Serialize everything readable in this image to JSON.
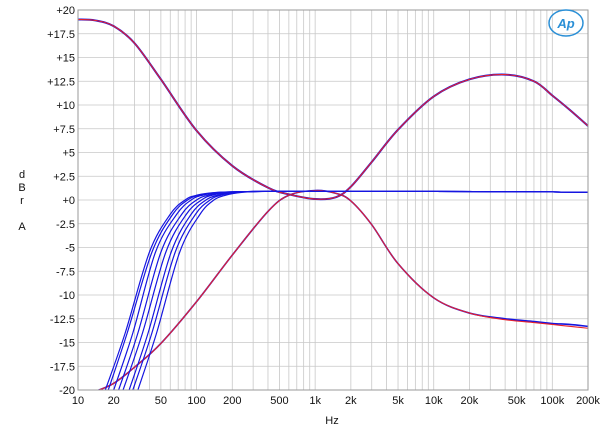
{
  "logo": {
    "text": "Ap",
    "color": "#2a8fd6"
  },
  "chart_data": {
    "type": "line",
    "title": "",
    "xlabel": "Hz",
    "ylabel_lines": [
      "d",
      "B",
      "r",
      "",
      "A"
    ],
    "x_scale": "log",
    "xlim": [
      10,
      200000
    ],
    "ylim": [
      -20,
      20
    ],
    "grid": true,
    "x_tick_labels": [
      {
        "v": 10,
        "label": "10"
      },
      {
        "v": 20,
        "label": "20"
      },
      {
        "v": 50,
        "label": "50"
      },
      {
        "v": 100,
        "label": "100"
      },
      {
        "v": 200,
        "label": "200"
      },
      {
        "v": 500,
        "label": "500"
      },
      {
        "v": 1000,
        "label": "1k"
      },
      {
        "v": 2000,
        "label": "2k"
      },
      {
        "v": 5000,
        "label": "5k"
      },
      {
        "v": 10000,
        "label": "10k"
      },
      {
        "v": 20000,
        "label": "20k"
      },
      {
        "v": 50000,
        "label": "50k"
      },
      {
        "v": 100000,
        "label": "100k"
      },
      {
        "v": 200000,
        "label": "200k"
      }
    ],
    "y_tick_labels": [
      {
        "v": 20,
        "label": "+20"
      },
      {
        "v": 17.5,
        "label": "+17.5"
      },
      {
        "v": 15,
        "label": "+15"
      },
      {
        "v": 12.5,
        "label": "+12.5"
      },
      {
        "v": 10,
        "label": "+10"
      },
      {
        "v": 7.5,
        "label": "+7.5"
      },
      {
        "v": 5,
        "label": "+5"
      },
      {
        "v": 2.5,
        "label": "+2.5"
      },
      {
        "v": 0,
        "label": "+0"
      },
      {
        "v": -2.5,
        "label": "-2.5"
      },
      {
        "v": -5,
        "label": "-5"
      },
      {
        "v": -7.5,
        "label": "-7.5"
      },
      {
        "v": -10,
        "label": "-10"
      },
      {
        "v": -12.5,
        "label": "-12.5"
      },
      {
        "v": -15,
        "label": "-15"
      },
      {
        "v": -17.5,
        "label": "-17.5"
      },
      {
        "v": -20,
        "label": "-20"
      }
    ],
    "series": [
      {
        "color": "#1515e0",
        "width": 2.0,
        "x": [
          10,
          14,
          20,
          30,
          50,
          100,
          200,
          400,
          600,
          1000,
          1500,
          2000,
          3000,
          5000,
          10000,
          20000,
          40000,
          70000,
          100000,
          140000,
          200000
        ],
        "y": [
          19.0,
          18.9,
          18.3,
          16.5,
          12.7,
          7.3,
          3.6,
          1.3,
          0.6,
          0.1,
          0.3,
          1.4,
          4.0,
          7.4,
          10.9,
          12.7,
          13.2,
          12.5,
          11.0,
          9.5,
          7.8
        ]
      },
      {
        "color": "#e8202a",
        "width": 1.1,
        "x": [
          10,
          14,
          20,
          30,
          50,
          100,
          200,
          400,
          600,
          1000,
          1500,
          2000,
          3000,
          5000,
          10000,
          20000,
          40000,
          70000,
          100000,
          140000,
          200000
        ],
        "y": [
          19.0,
          18.9,
          18.3,
          16.5,
          12.7,
          7.3,
          3.6,
          1.3,
          0.6,
          0.1,
          0.3,
          1.4,
          4.0,
          7.4,
          10.9,
          12.7,
          13.2,
          12.5,
          11.0,
          9.5,
          7.8
        ]
      },
      {
        "color": "#1515e0",
        "width": 1.6,
        "x": [
          15,
          20,
          30,
          50,
          100,
          200,
          400,
          600,
          1000,
          1500,
          2000,
          3000,
          5000,
          10000,
          20000,
          40000,
          70000,
          100000,
          140000,
          200000
        ],
        "y": [
          -20.0,
          -19.3,
          -17.6,
          -15.1,
          -10.7,
          -5.8,
          -1.2,
          0.5,
          1.0,
          0.7,
          -0.1,
          -2.6,
          -6.7,
          -10.3,
          -11.9,
          -12.5,
          -12.8,
          -13.0,
          -13.1,
          -13.3
        ]
      },
      {
        "color": "#e8202a",
        "width": 1.1,
        "x": [
          15,
          20,
          30,
          50,
          100,
          200,
          400,
          600,
          1000,
          1500,
          2000,
          3000,
          5000,
          10000,
          20000,
          40000,
          70000,
          100000,
          140000,
          200000
        ],
        "y": [
          -20.0,
          -19.3,
          -17.6,
          -15.1,
          -10.7,
          -5.8,
          -1.2,
          0.5,
          1.0,
          0.7,
          -0.1,
          -2.6,
          -6.7,
          -10.3,
          -11.9,
          -12.6,
          -12.9,
          -13.1,
          -13.3,
          -13.5
        ]
      },
      {
        "color": "#1515e0",
        "width": 1.2,
        "x": [
          17,
          25,
          40,
          60,
          80,
          100,
          150,
          300,
          1000,
          10000,
          100000,
          200000
        ],
        "y": [
          -20.0,
          -14.0,
          -5.5,
          -1.5,
          0.0,
          0.5,
          0.8,
          0.9,
          0.9,
          0.9,
          0.85,
          0.8
        ]
      },
      {
        "color": "#1515e0",
        "width": 1.2,
        "x": [
          18,
          26,
          42,
          63,
          84,
          105,
          155,
          300,
          1000,
          10000,
          100000,
          200000
        ],
        "y": [
          -20.0,
          -14.0,
          -5.5,
          -1.5,
          0.0,
          0.5,
          0.8,
          0.9,
          0.9,
          0.9,
          0.85,
          0.8
        ]
      },
      {
        "color": "#1515e0",
        "width": 1.2,
        "x": [
          20,
          29,
          45,
          68,
          90,
          112,
          160,
          300,
          1000,
          10000,
          100000,
          200000
        ],
        "y": [
          -20.0,
          -14.0,
          -5.5,
          -1.5,
          0.0,
          0.5,
          0.8,
          0.9,
          0.9,
          0.9,
          0.85,
          0.8
        ]
      },
      {
        "color": "#1515e0",
        "width": 1.2,
        "x": [
          22,
          32,
          50,
          75,
          100,
          125,
          175,
          320,
          1000,
          10000,
          100000,
          200000
        ],
        "y": [
          -20.0,
          -14.0,
          -5.5,
          -1.5,
          0.0,
          0.5,
          0.8,
          0.9,
          0.9,
          0.9,
          0.85,
          0.8
        ]
      },
      {
        "color": "#1515e0",
        "width": 1.2,
        "x": [
          24,
          35,
          55,
          82,
          110,
          135,
          190,
          330,
          1000,
          10000,
          100000,
          200000
        ],
        "y": [
          -20.0,
          -14.0,
          -5.5,
          -1.5,
          0.0,
          0.5,
          0.8,
          0.9,
          0.9,
          0.9,
          0.85,
          0.8
        ]
      },
      {
        "color": "#1515e0",
        "width": 1.2,
        "x": [
          27,
          39,
          61,
          90,
          120,
          150,
          205,
          350,
          1000,
          10000,
          100000,
          200000
        ],
        "y": [
          -20.0,
          -14.0,
          -5.5,
          -1.5,
          0.0,
          0.5,
          0.8,
          0.9,
          0.9,
          0.9,
          0.85,
          0.8
        ]
      },
      {
        "color": "#1515e0",
        "width": 1.2,
        "x": [
          29,
          42,
          66,
          98,
          130,
          160,
          220,
          360,
          1000,
          10000,
          100000,
          200000
        ],
        "y": [
          -20.0,
          -14.0,
          -5.5,
          -1.5,
          0.0,
          0.5,
          0.8,
          0.9,
          0.9,
          0.9,
          0.85,
          0.8
        ]
      },
      {
        "color": "#1515e0",
        "width": 1.2,
        "x": [
          32,
          46,
          72,
          107,
          140,
          175,
          240,
          380,
          1000,
          10000,
          100000,
          200000
        ],
        "y": [
          -20.0,
          -14.0,
          -5.5,
          -1.5,
          0.0,
          0.5,
          0.8,
          0.9,
          0.9,
          0.9,
          0.85,
          0.8
        ]
      }
    ]
  }
}
